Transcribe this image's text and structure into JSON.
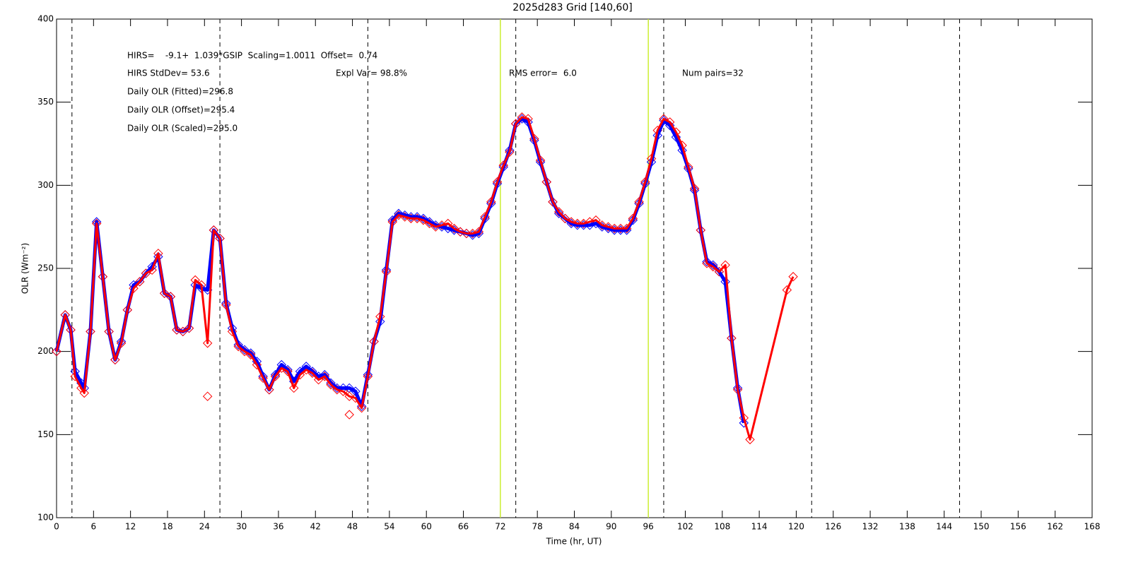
{
  "chart_data": {
    "type": "line",
    "title": "2025d283 Grid [140,60]",
    "x_label": "Time (hr, UT)",
    "y_label": "OLR (Wm⁻²)",
    "annotations": [
      "HIRS=    -9.1+  1.039*GSIP  Scaling=1.0011  Offset=  0.74",
      "HIRS StdDev= 53.6",
      "Expl Var= 98.8%",
      "RMS error=  6.0",
      "Num pairs=32",
      "Daily OLR (Fitted)=296.8",
      "Daily OLR (Offset)=295.4",
      "Daily OLR (Scaled)=295.0"
    ],
    "xlim": [
      0,
      168
    ],
    "xticks": [
      0,
      6,
      12,
      18,
      24,
      30,
      36,
      42,
      48,
      54,
      60,
      66,
      72,
      78,
      84,
      90,
      96,
      102,
      108,
      114,
      120,
      126,
      132,
      138,
      144,
      150,
      156,
      162,
      168
    ],
    "ylim": [
      100,
      400
    ],
    "yticks": [
      100,
      150,
      200,
      250,
      300,
      350,
      400
    ],
    "vlines_dashed": [
      2.5,
      26.5,
      50.5,
      74.5,
      98.5,
      122.5,
      146.5
    ],
    "vlines_dashed_color": "#000000",
    "vlines_solid": [
      72,
      96
    ],
    "vlines_solid_color": "#ccee33",
    "series": [
      {
        "color": "#0000ff",
        "marker": "diamond",
        "line_width": 5,
        "x": [
          0,
          1.4,
          2.3,
          3,
          4,
          4.5,
          5.5,
          6.5,
          7.5,
          8.5,
          9.5,
          10.5,
          11.5,
          12.5,
          13.5,
          14.5,
          15.5,
          16.5,
          17.5,
          18.5,
          19.5,
          20.5,
          21.5,
          22.5,
          23.5,
          24.5,
          25.5,
          26.5,
          27.5,
          28.5,
          29.5,
          30.5,
          31.5,
          32.5,
          33.5,
          34.5,
          35.5,
          36.5,
          37.5,
          38.5,
          39.5,
          40.5,
          41.5,
          42.5,
          43.5,
          44.5,
          45.5,
          46.5,
          47.5,
          48.5,
          49.5,
          50.5,
          51.5,
          52.5,
          53.5,
          54.5,
          55.5,
          56.5,
          57.5,
          58.5,
          59.5,
          60.5,
          61.5,
          62.5,
          63.5,
          64.5,
          65.5,
          66.5,
          67.5,
          68.5,
          69.5,
          70.5,
          71.5,
          72.5,
          73.5,
          74.5,
          75.5,
          76.5,
          77.5,
          78.5,
          79.5,
          80.5,
          81.5,
          82.5,
          83.5,
          84.5,
          85.5,
          86.5,
          87.5,
          88.5,
          89.5,
          90.5,
          91.5,
          92.5,
          93.5,
          94.5,
          95.5,
          96.5,
          97.5,
          98.5,
          99.5,
          100.5,
          101.5,
          102.5,
          103.5,
          104.5,
          105.5,
          106.5,
          107.5,
          108.5,
          109.5,
          110.5,
          111.5
        ],
        "values": [
          200,
          222,
          213,
          188,
          181,
          178,
          212,
          278,
          245,
          212,
          195,
          206,
          225,
          240,
          242,
          247,
          251,
          257,
          235,
          233,
          213,
          212,
          214,
          240,
          238,
          237,
          273,
          268,
          229,
          214,
          204,
          201,
          199,
          194,
          185,
          177,
          186,
          192,
          189,
          182,
          188,
          191,
          188,
          185,
          186,
          181,
          178,
          178,
          178,
          176,
          167,
          186,
          206,
          218,
          249,
          279,
          283,
          282,
          281,
          281,
          280,
          278,
          276,
          275,
          274,
          273,
          272,
          271,
          270,
          271,
          280,
          289,
          301,
          311,
          321,
          337,
          340,
          338,
          327,
          314,
          302,
          290,
          283,
          280,
          277,
          276,
          276,
          276,
          277,
          275,
          274,
          273,
          273,
          273,
          279,
          289,
          301,
          314,
          330,
          339,
          336,
          329,
          321,
          310,
          297,
          273,
          254,
          252,
          248,
          242,
          208,
          178,
          157
        ]
      },
      {
        "color": "#ff0000",
        "marker": "diamond",
        "line_width": 3,
        "x": [
          0,
          1.4,
          2.3,
          3,
          4,
          4.5,
          5.5,
          6.5,
          7.5,
          8.5,
          9.5,
          10.5,
          11.5,
          12.5,
          13.5,
          14.5,
          15.5,
          16.5,
          17.5,
          18.5,
          19.5,
          20.5,
          21.5,
          22.5,
          23.5,
          24.5,
          25.5,
          26.5,
          27.5,
          28.5,
          29.5,
          30.5,
          31.5,
          32.5,
          33.5,
          34.5,
          35.5,
          36.5,
          37.5,
          38.5,
          39.5,
          40.5,
          41.5,
          42.5,
          43.5,
          44.5,
          45.5,
          46.5,
          47.5,
          48.5,
          49.5,
          50.5,
          51.5,
          52.5,
          53.5,
          54.5,
          55.5,
          56.5,
          57.5,
          58.5,
          59.5,
          60.5,
          61.5,
          62.5,
          63.5,
          64.5,
          65.5,
          66.5,
          67.5,
          68.5,
          69.5,
          70.5,
          71.5,
          72.5,
          73.5,
          74.5,
          75.5,
          76.5,
          77.5,
          78.5,
          79.5,
          80.5,
          81.5,
          82.5,
          83.5,
          84.5,
          85.5,
          86.5,
          87.5,
          88.5,
          89.5,
          90.5,
          91.5,
          92.5,
          93.5,
          94.5,
          95.5,
          96.5,
          97.5,
          98.5,
          99.5,
          100.5,
          101.5,
          102.5,
          103.5,
          104.5,
          105.5,
          106.5,
          107.5,
          108.5,
          109.5,
          110.5,
          111.5,
          112.5,
          118.5,
          119.5
        ],
        "values": [
          200,
          222,
          213,
          185,
          178,
          175,
          212,
          277,
          245,
          212,
          195,
          205,
          225,
          238,
          242,
          247,
          249,
          259,
          235,
          233,
          213,
          212,
          214,
          243,
          240,
          205,
          273,
          268,
          228,
          212,
          203,
          200,
          198,
          192,
          184,
          177,
          185,
          190,
          188,
          178,
          186,
          189,
          187,
          183,
          185,
          180,
          177,
          176,
          173,
          172,
          166,
          185,
          206,
          221,
          248,
          278,
          282,
          281,
          280,
          280,
          279,
          277,
          275,
          276,
          277,
          274,
          272,
          271,
          271,
          272,
          281,
          290,
          302,
          312,
          320,
          337,
          341,
          340,
          328,
          315,
          302,
          290,
          284,
          280,
          278,
          277,
          277,
          278,
          279,
          276,
          275,
          274,
          274,
          274,
          280,
          290,
          302,
          316,
          333,
          340,
          338,
          332,
          324,
          311,
          298,
          273,
          253,
          251,
          248,
          252,
          208,
          177,
          160,
          147,
          237,
          245
        ]
      },
      {
        "color": "#ff0000",
        "marker": "diamond",
        "line_width": 0,
        "x": [
          24.5,
          47.5
        ],
        "values": [
          173,
          162
        ]
      }
    ]
  }
}
